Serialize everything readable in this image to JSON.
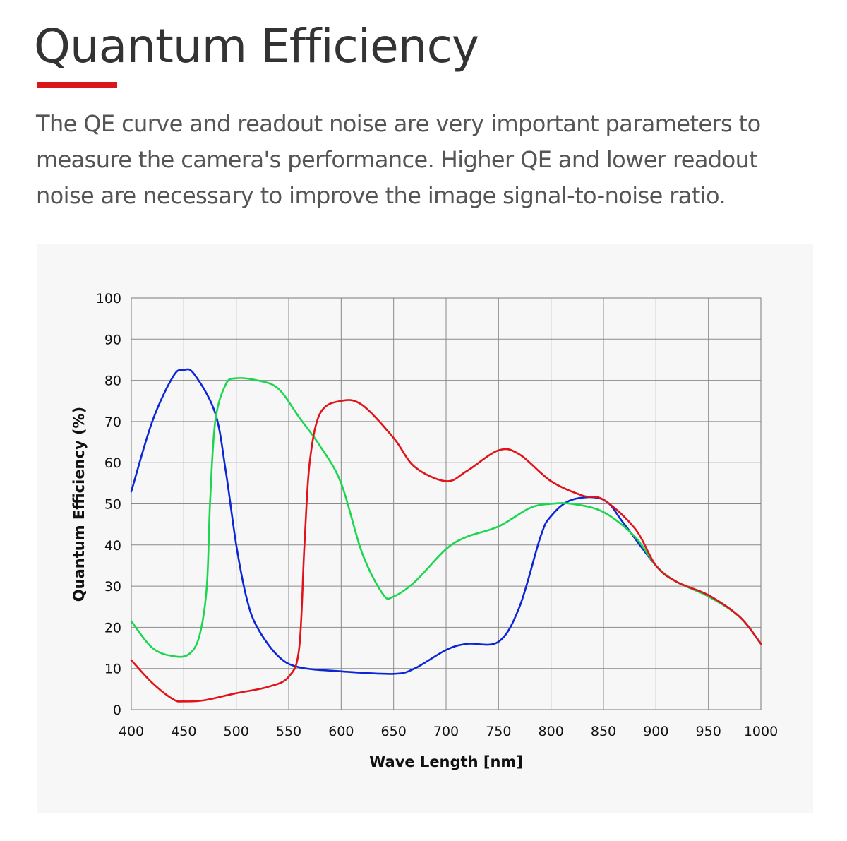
{
  "header": {
    "title": "Quantum Efficiency",
    "accent_color": "#d9161a",
    "intro": "The QE curve and readout noise are very important parameters to measure the camera's performance. Higher QE and lower readout noise are necessary to improve the image signal-to-noise ratio."
  },
  "chart_data": {
    "type": "line",
    "title": "",
    "xlabel": "Wave Length [nm]",
    "ylabel": "Quantum Efficiency (%)",
    "xlim": [
      400,
      1000
    ],
    "ylim": [
      0,
      100
    ],
    "xticks": [
      400,
      450,
      500,
      550,
      600,
      650,
      700,
      750,
      800,
      850,
      900,
      950,
      1000
    ],
    "yticks": [
      0,
      10,
      20,
      30,
      40,
      50,
      60,
      70,
      80,
      90,
      100
    ],
    "grid": true,
    "legend": "none",
    "series": [
      {
        "color": "#0a26d6",
        "x": [
          400,
          420,
          440,
          450,
          460,
          480,
          490,
          500,
          510,
          520,
          540,
          560,
          600,
          650,
          670,
          700,
          720,
          750,
          770,
          790,
          800,
          820,
          850,
          870,
          900,
          920,
          950,
          980,
          1000
        ],
        "y": [
          53,
          70,
          81,
          82.5,
          81.5,
          72,
          58,
          40,
          27,
          20,
          13,
          10.3,
          9.3,
          8.7,
          10,
          14.5,
          16,
          16.5,
          25,
          42,
          47,
          51,
          51,
          45,
          35,
          31,
          27.8,
          22.5,
          16
        ]
      },
      {
        "color": "#1bd64f",
        "x": [
          400,
          420,
          440,
          455,
          465,
          472,
          475,
          480,
          490,
          500,
          520,
          540,
          560,
          580,
          600,
          620,
          640,
          650,
          670,
          700,
          720,
          750,
          780,
          800,
          820,
          850,
          880,
          900,
          920,
          950,
          980,
          1000
        ],
        "y": [
          21.5,
          15,
          13,
          13.5,
          18,
          30,
          50,
          70,
          79,
          80.5,
          80,
          78,
          71,
          64,
          55,
          38,
          28,
          27.5,
          31,
          39,
          42,
          44.5,
          49,
          50,
          50,
          48,
          42,
          35,
          31,
          27.5,
          22.5,
          16
        ]
      },
      {
        "color": "#e0121a",
        "x": [
          400,
          420,
          440,
          450,
          470,
          500,
          530,
          550,
          560,
          565,
          570,
          580,
          600,
          620,
          650,
          670,
          700,
          720,
          750,
          770,
          800,
          830,
          850,
          880,
          900,
          920,
          950,
          980,
          1000
        ],
        "y": [
          12,
          6.5,
          2.5,
          2,
          2.3,
          4,
          5.5,
          8,
          15,
          40,
          60,
          72,
          75,
          74,
          66,
          59,
          55.5,
          58,
          63,
          62,
          55.5,
          52,
          51,
          44,
          35,
          31,
          27.8,
          22.5,
          16
        ]
      }
    ]
  }
}
